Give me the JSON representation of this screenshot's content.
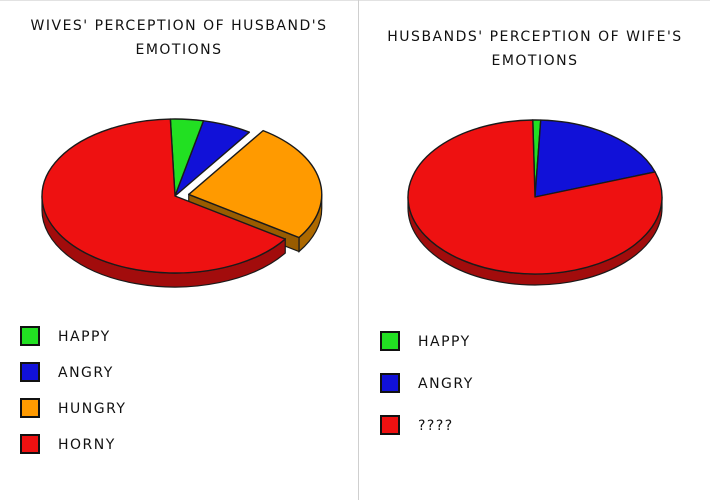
{
  "chart_data": [
    {
      "type": "pie",
      "title": "Wives' perception of Husband's emotions",
      "categories": [
        "Happy",
        "Angry",
        "Hungry",
        "Horny"
      ],
      "values": [
        4,
        6,
        25,
        65
      ],
      "colors": [
        "#22e022",
        "#1111d8",
        "#ff9a00",
        "#ee1111"
      ],
      "exploded": [
        false,
        false,
        true,
        false
      ],
      "legend": "bottom"
    },
    {
      "type": "pie",
      "title": "Husbands' perception of Wife's emotions",
      "categories": [
        "Happy",
        "Angry",
        "????"
      ],
      "values": [
        1,
        19,
        80
      ],
      "colors": [
        "#22e022",
        "#1111d8",
        "#ee1111"
      ],
      "exploded": [
        false,
        false,
        false
      ],
      "legend": "bottom"
    }
  ]
}
